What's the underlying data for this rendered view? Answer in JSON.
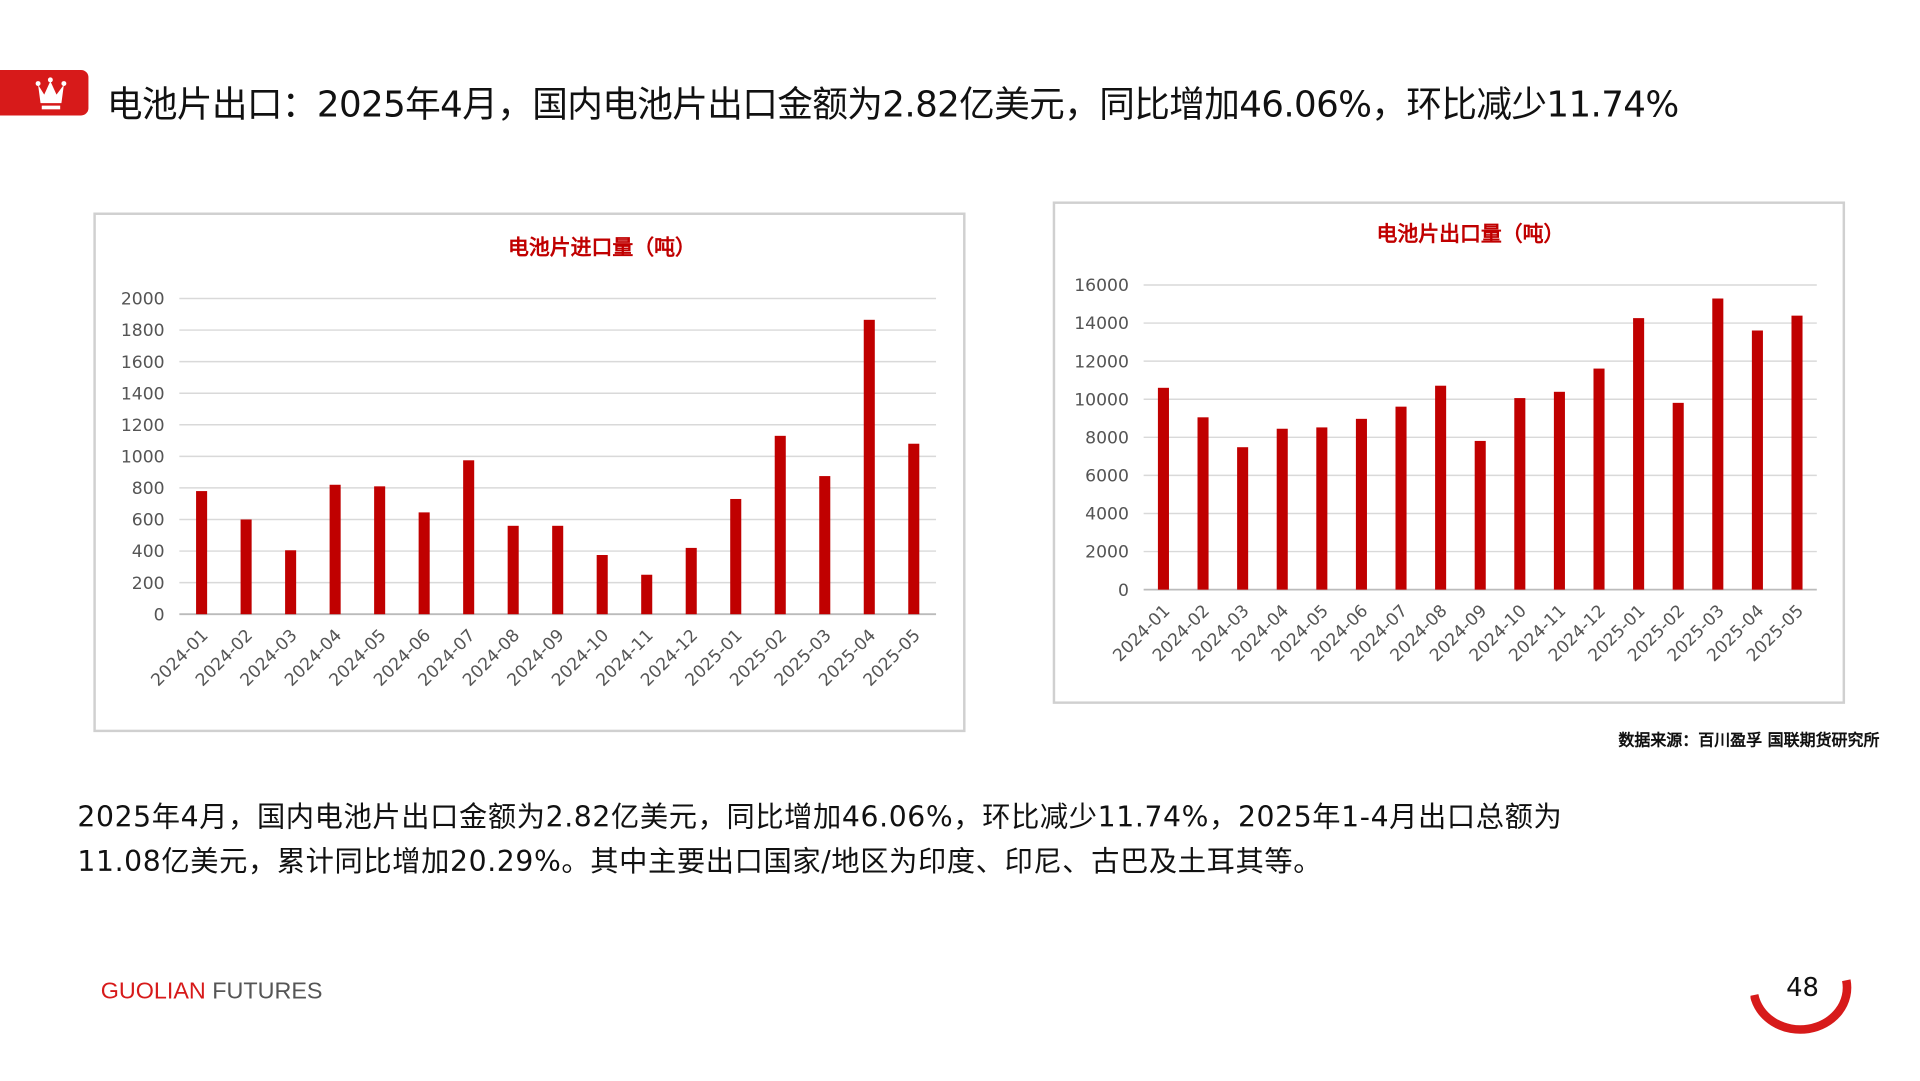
{
  "header": {
    "title": "电池片出口：2025年4月，国内电池片出口金额为2.82亿美元，同比增加46.06%，环比减少11.74%",
    "icon": "crown-icon",
    "accent": "#d71a1a"
  },
  "source": "数据来源：百川盈孚  国联期货研究所",
  "body_text": [
    "2025年4月，国内电池片出口金额为2.82亿美元，同比增加46.06%，环比减少11.74%，2025年1-4月出口总额为",
    "11.08亿美元，累计同比增加20.29%。其中主要出口国家/地区为印度、印尼、古巴及土耳其等。"
  ],
  "footer": {
    "brand_red": "GUOLIAN",
    "brand_gray": " FUTURES",
    "page": "48"
  },
  "chart_data": [
    {
      "type": "bar",
      "title": "电池片进口量（吨）",
      "color": "#c00000",
      "ylim": [
        0,
        2000
      ],
      "yticks": [
        0,
        200,
        400,
        600,
        800,
        1000,
        1200,
        1400,
        1600,
        1800,
        2000
      ],
      "grid": true,
      "categories": [
        "2024-01",
        "2024-02",
        "2024-03",
        "2024-04",
        "2024-05",
        "2024-06",
        "2024-07",
        "2024-08",
        "2024-09",
        "2024-10",
        "2024-11",
        "2024-12",
        "2025-01",
        "2025-02",
        "2025-03",
        "2025-04",
        "2025-05"
      ],
      "values": [
        780,
        600,
        405,
        820,
        810,
        645,
        975,
        560,
        560,
        375,
        250,
        420,
        730,
        1130,
        875,
        1865,
        1080
      ]
    },
    {
      "type": "bar",
      "title": "电池片出口量（吨）",
      "color": "#c00000",
      "ylim": [
        0,
        16000
      ],
      "yticks": [
        0,
        2000,
        4000,
        6000,
        8000,
        10000,
        12000,
        14000,
        16000
      ],
      "grid": true,
      "categories": [
        "2024-01",
        "2024-02",
        "2024-03",
        "2024-04",
        "2024-05",
        "2024-06",
        "2024-07",
        "2024-08",
        "2024-09",
        "2024-10",
        "2024-11",
        "2024-12",
        "2025-01",
        "2025-02",
        "2025-03",
        "2025-04",
        "2025-05"
      ],
      "values": [
        10600,
        9050,
        7480,
        8450,
        8520,
        8970,
        9610,
        10710,
        7810,
        10060,
        10390,
        11610,
        14260,
        9810,
        15290,
        13610,
        14390
      ]
    }
  ]
}
